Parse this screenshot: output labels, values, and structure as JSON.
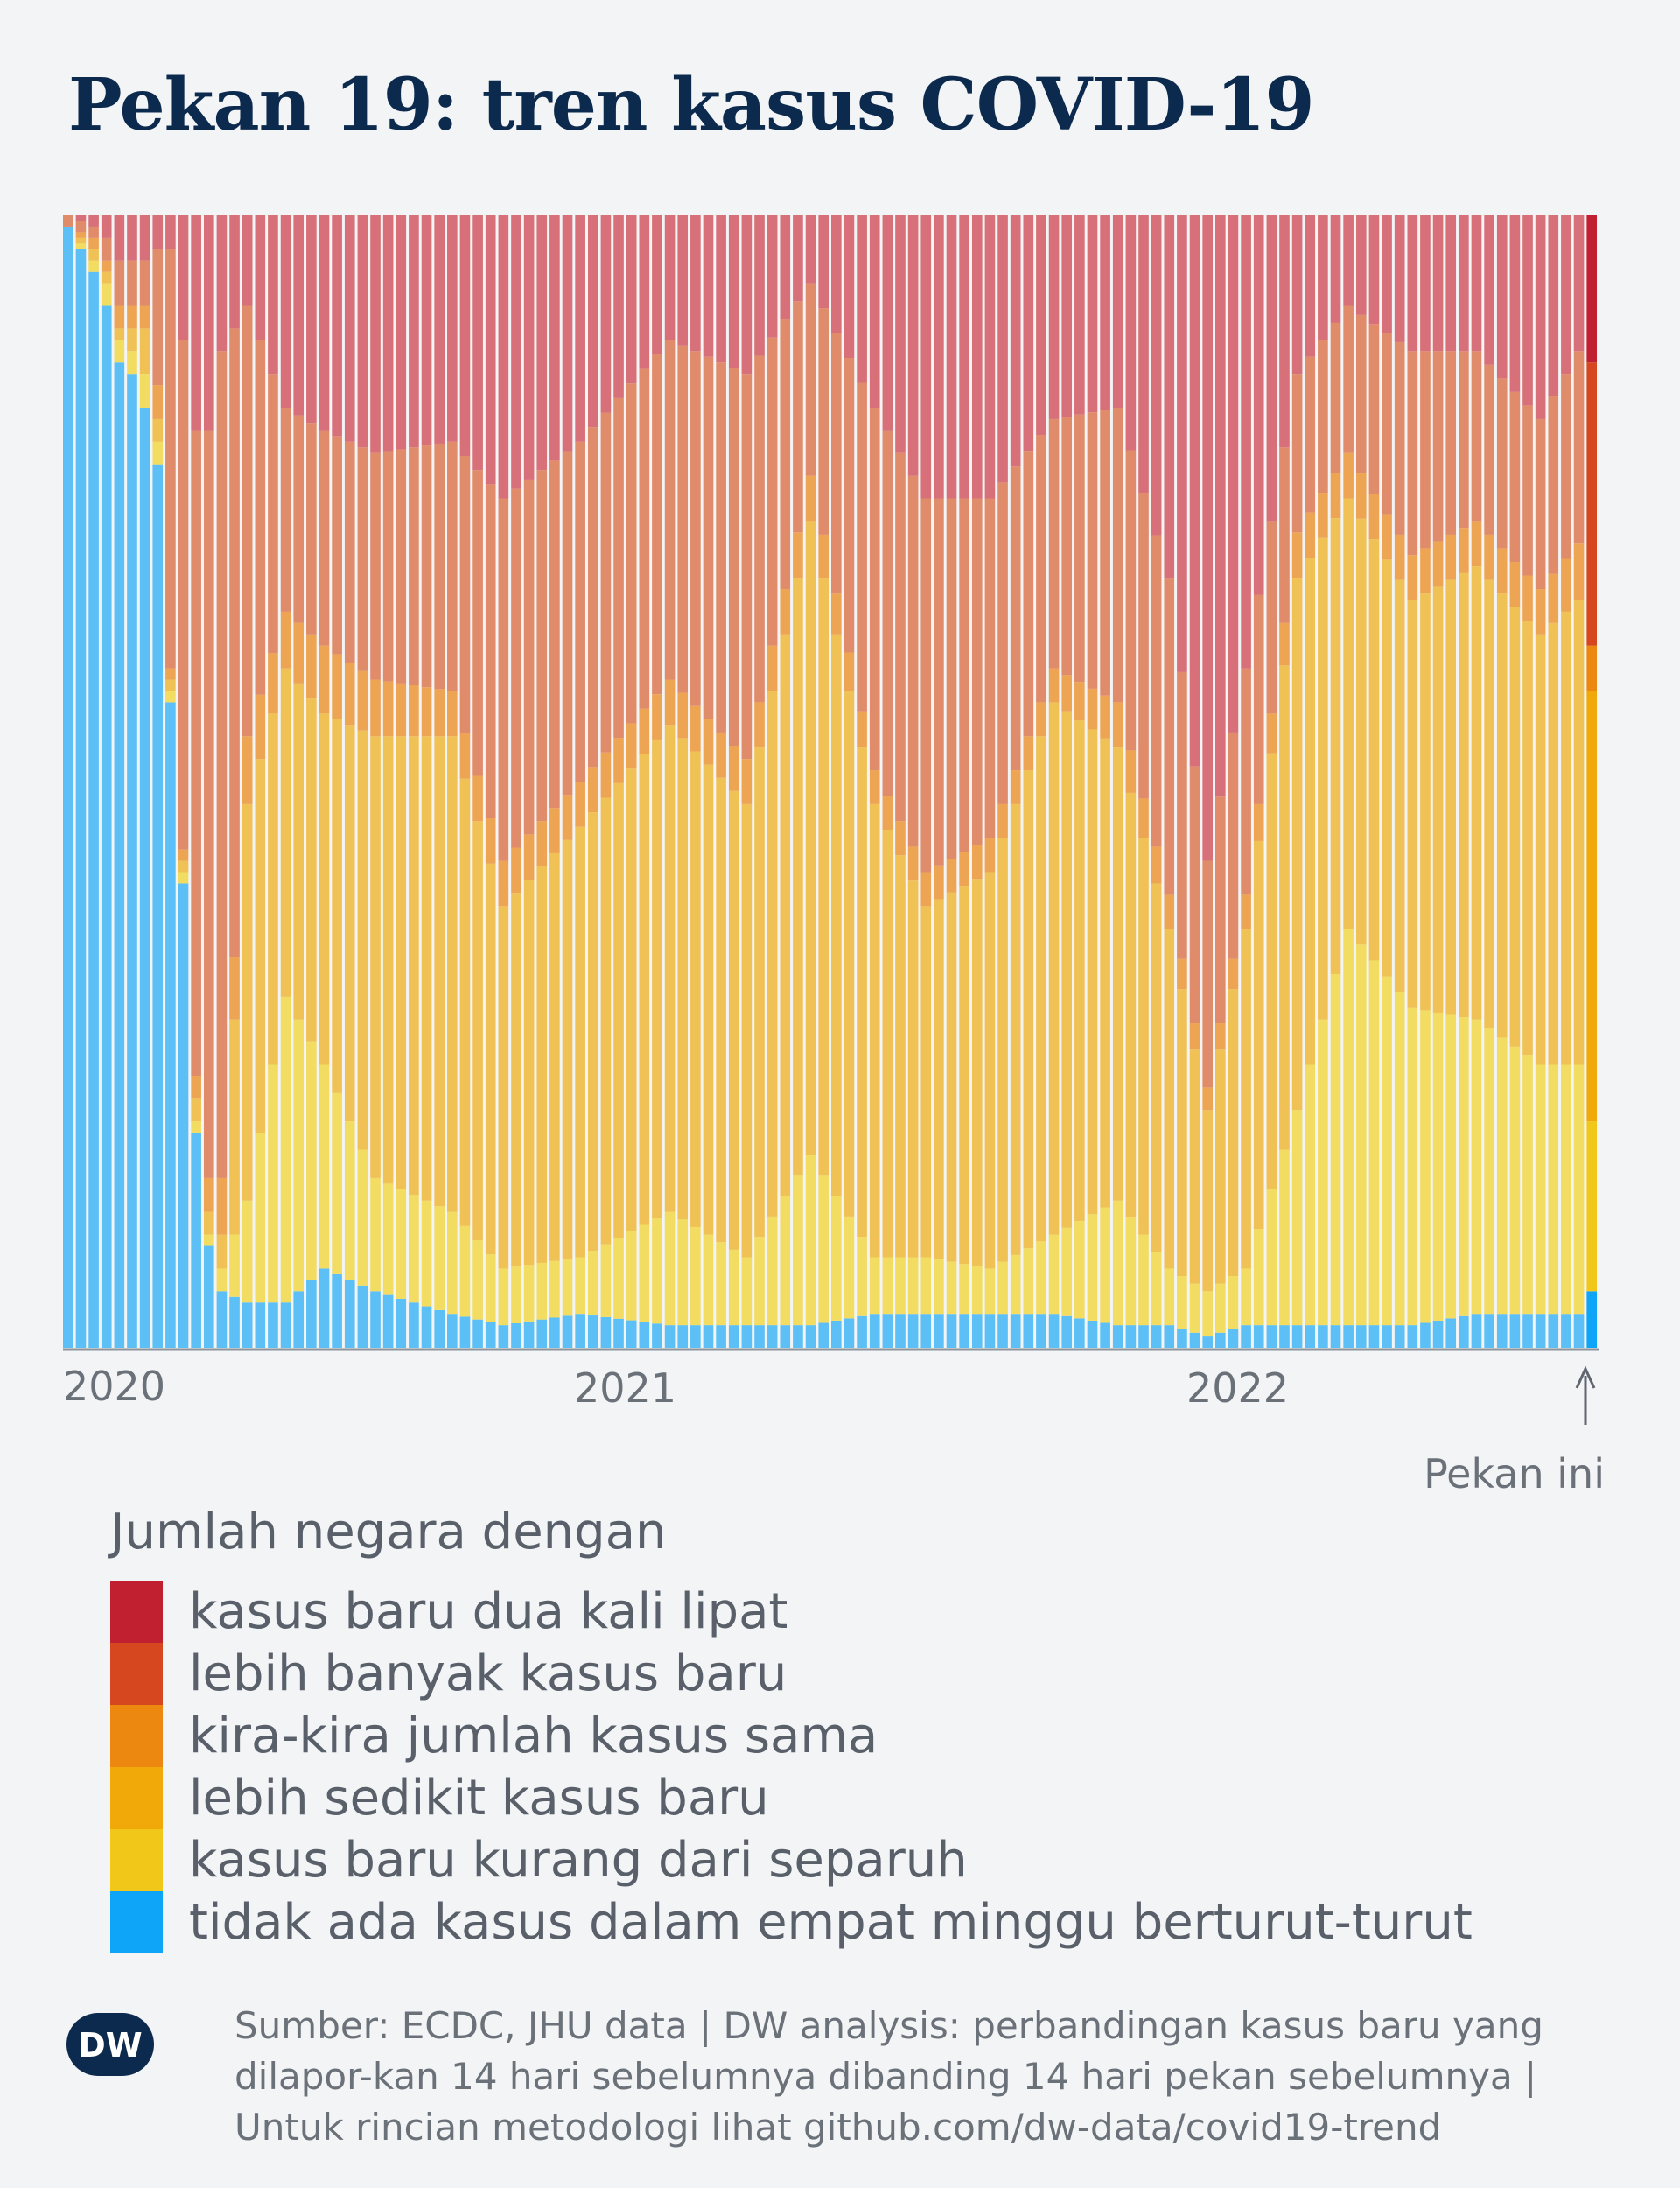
{
  "title": "Pekan 19: tren kasus COVID-19",
  "chart_data": {
    "type": "bar",
    "stacked": true,
    "normalized": true,
    "x_tick_labels": [
      "2020",
      "2021",
      "2022"
    ],
    "current_week_label": "Pekan ini",
    "series_order": [
      "tidak ada kasus dalam empat minggu berturut-turut",
      "kasus baru kurang dari separuh",
      "lebih sedikit kasus baru",
      "kira-kira jumlah kasus sama",
      "lebih banyak kasus baru",
      "kasus baru dua kali lipat"
    ],
    "keyframes": [
      {
        "week": 0,
        "values": [
          0.99,
          0.0,
          0.0,
          0.0,
          0.01,
          0.0
        ]
      },
      {
        "week": 2,
        "values": [
          0.95,
          0.01,
          0.01,
          0.01,
          0.01,
          0.01
        ]
      },
      {
        "week": 3,
        "values": [
          0.92,
          0.02,
          0.01,
          0.01,
          0.02,
          0.02
        ]
      },
      {
        "week": 4,
        "values": [
          0.87,
          0.02,
          0.01,
          0.02,
          0.04,
          0.04
        ]
      },
      {
        "week": 5,
        "values": [
          0.86,
          0.02,
          0.02,
          0.02,
          0.04,
          0.04
        ]
      },
      {
        "week": 6,
        "values": [
          0.83,
          0.03,
          0.04,
          0.02,
          0.04,
          0.04
        ]
      },
      {
        "week": 7,
        "values": [
          0.78,
          0.02,
          0.02,
          0.03,
          0.12,
          0.03
        ]
      },
      {
        "week": 8,
        "values": [
          0.57,
          0.01,
          0.01,
          0.01,
          0.37,
          0.03
        ]
      },
      {
        "week": 9,
        "values": [
          0.41,
          0.01,
          0.01,
          0.01,
          0.45,
          0.11
        ]
      },
      {
        "week": 10,
        "values": [
          0.19,
          0.01,
          0.02,
          0.02,
          0.57,
          0.19
        ]
      },
      {
        "week": 11,
        "values": [
          0.09,
          0.01,
          0.02,
          0.03,
          0.66,
          0.19
        ]
      },
      {
        "week": 12,
        "values": [
          0.05,
          0.02,
          0.03,
          0.05,
          0.73,
          0.12
        ]
      },
      {
        "week": 14,
        "values": [
          0.04,
          0.09,
          0.35,
          0.06,
          0.38,
          0.08
        ]
      },
      {
        "week": 17,
        "values": [
          0.04,
          0.27,
          0.29,
          0.05,
          0.18,
          0.17
        ]
      },
      {
        "week": 20,
        "values": [
          0.07,
          0.18,
          0.31,
          0.06,
          0.19,
          0.19
        ]
      },
      {
        "week": 24,
        "values": [
          0.05,
          0.1,
          0.39,
          0.05,
          0.2,
          0.21
        ]
      },
      {
        "week": 30,
        "values": [
          0.03,
          0.09,
          0.42,
          0.04,
          0.22,
          0.2
        ]
      },
      {
        "week": 34,
        "values": [
          0.02,
          0.05,
          0.32,
          0.04,
          0.32,
          0.25
        ]
      },
      {
        "week": 40,
        "values": [
          0.03,
          0.05,
          0.38,
          0.04,
          0.3,
          0.2
        ]
      },
      {
        "week": 47,
        "values": [
          0.02,
          0.1,
          0.43,
          0.04,
          0.3,
          0.11
        ]
      },
      {
        "week": 53,
        "values": [
          0.02,
          0.06,
          0.4,
          0.04,
          0.34,
          0.14
        ]
      },
      {
        "week": 58,
        "values": [
          0.02,
          0.15,
          0.56,
          0.04,
          0.17,
          0.06
        ]
      },
      {
        "week": 63,
        "values": [
          0.03,
          0.05,
          0.4,
          0.03,
          0.32,
          0.17
        ]
      },
      {
        "week": 67,
        "values": [
          0.03,
          0.05,
          0.31,
          0.03,
          0.33,
          0.25
        ]
      },
      {
        "week": 72,
        "values": [
          0.03,
          0.04,
          0.35,
          0.03,
          0.3,
          0.25
        ]
      },
      {
        "week": 77,
        "values": [
          0.03,
          0.07,
          0.47,
          0.03,
          0.22,
          0.18
        ]
      },
      {
        "week": 82,
        "values": [
          0.02,
          0.11,
          0.4,
          0.04,
          0.26,
          0.17
        ]
      },
      {
        "week": 86,
        "values": [
          0.02,
          0.05,
          0.3,
          0.03,
          0.28,
          0.32
        ]
      },
      {
        "week": 89,
        "values": [
          0.01,
          0.04,
          0.16,
          0.02,
          0.2,
          0.57
        ]
      },
      {
        "week": 92,
        "values": [
          0.02,
          0.05,
          0.3,
          0.03,
          0.2,
          0.4
        ]
      },
      {
        "week": 96,
        "values": [
          0.02,
          0.19,
          0.47,
          0.04,
          0.14,
          0.14
        ]
      },
      {
        "week": 100,
        "values": [
          0.02,
          0.35,
          0.38,
          0.04,
          0.13,
          0.08
        ]
      },
      {
        "week": 105,
        "values": [
          0.02,
          0.28,
          0.36,
          0.04,
          0.18,
          0.12
        ]
      },
      {
        "week": 110,
        "values": [
          0.03,
          0.26,
          0.4,
          0.04,
          0.15,
          0.12
        ]
      },
      {
        "week": 115,
        "values": [
          0.03,
          0.22,
          0.38,
          0.04,
          0.15,
          0.18
        ]
      },
      {
        "week": 118,
        "values": [
          0.03,
          0.22,
          0.41,
          0.05,
          0.17,
          0.12
        ]
      },
      {
        "week": 119,
        "values": [
          0.05,
          0.15,
          0.38,
          0.04,
          0.25,
          0.13
        ]
      }
    ]
  },
  "legend": {
    "title": "Jumlah negara dengan",
    "items": [
      {
        "label": "kasus baru dua kali lipat",
        "color": "#c0202f"
      },
      {
        "label": "lebih banyak kasus baru",
        "color": "#d6471f"
      },
      {
        "label": "kira-kira jumlah kasus sama",
        "color": "#ec8810"
      },
      {
        "label": "lebih sedikit kasus baru",
        "color": "#f1a90a"
      },
      {
        "label": "kasus baru kurang dari separuh",
        "color": "#f1c81a"
      },
      {
        "label": "tidak ada kasus dalam empat minggu berturut-turut",
        "color": "#0ea5f8"
      }
    ]
  },
  "pale_colors": {
    "tidak ada kasus dalam empat minggu berturut-turut": "#5cc0f6",
    "kasus baru kurang dari separuh": "#f2dc62",
    "lebih sedikit kasus baru": "#f0c255",
    "kira-kira jumlah kasus sama": "#eda554",
    "lebih banyak kasus baru": "#e08b6a",
    "kasus baru dua kali lipat": "#d77078"
  },
  "source": "Sumber: ECDC, JHU data | DW analysis: perbandingan kasus baru yang dilapor-kan 14 hari sebelumnya dibanding 14 hari pekan sebelumnya | Untuk rincian metodologi lihat github.com/dw-data/covid19-trend",
  "logo_text": "DW"
}
